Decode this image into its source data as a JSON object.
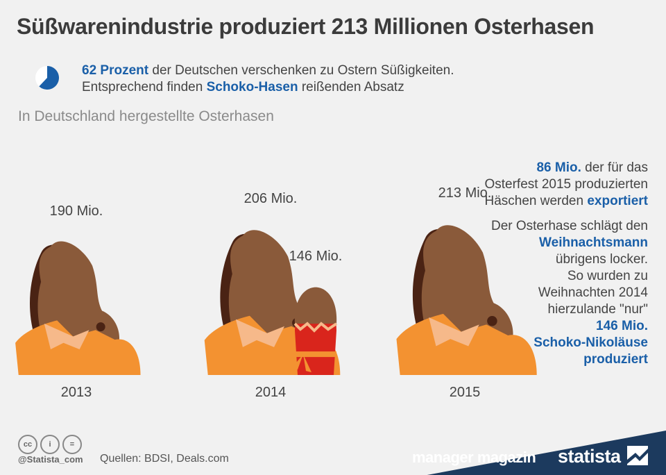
{
  "title": "Süßwarenindustrie produziert 213 Millionen Osterhasen",
  "intro": {
    "pct": "62 Prozent",
    "line1_rest": " der Deutschen verschenken zu Ostern Süßigkeiten.",
    "line2_pre": "Entsprechend finden ",
    "line2_hl": "Schoko-Hasen",
    "line2_post": " reißenden Absatz",
    "share": 0.62
  },
  "subtitle": "In Deutschland hergestellte Osterhasen",
  "chart_data": {
    "type": "bar",
    "title": "In Deutschland hergestellte Osterhasen",
    "categories": [
      "2013",
      "2014",
      "2015"
    ],
    "series": [
      {
        "values": [
          190,
          206,
          213
        ]
      }
    ],
    "labels": [
      "190 Mio.",
      "206 Mio.",
      "213 Mio."
    ],
    "extra": {
      "value": 146,
      "label": "146 Mio."
    },
    "unit": "Mio."
  },
  "side": {
    "p1_hl1": "86 Mio.",
    "p1_a": " der für das",
    "p1_b": "Osterfest 2015 produzierten",
    "p1_c": "Häschen werden ",
    "p1_hl2": "exportiert",
    "p2_a": "Der Osterhase schlägt den",
    "p2_hl1": "Weihnachtsmann",
    "p2_b": "übrigens locker.",
    "p2_c": "So wurden zu",
    "p2_d": "Weihnachten 2014",
    "p2_e": "hierzulande \"nur\"",
    "p2_hl2": "146 Mio.",
    "p2_hl3": "Schoko-Nikoläuse",
    "p2_hl4": "produziert"
  },
  "footer": {
    "cc": [
      "cc",
      "i",
      "="
    ],
    "handle": "@Statista_com",
    "sources": "Quellen: BDSI, Deals.com",
    "brand1": "manager magazin",
    "brand2": "statista"
  },
  "colors": {
    "accent": "#1a5fa8",
    "chocolate": "#8a5a3a",
    "chocolate_dark": "#4a2314",
    "foil": "#f39231",
    "foil_light": "#f6b98a",
    "santa_red": "#d9251c",
    "brand_bar": "#1c3a5e"
  },
  "icons": {
    "pie": "pie-chart-icon",
    "rabbit": "chocolate-bunny-icon",
    "santa": "chocolate-santa-icon",
    "brand": "statista-logo-icon"
  }
}
